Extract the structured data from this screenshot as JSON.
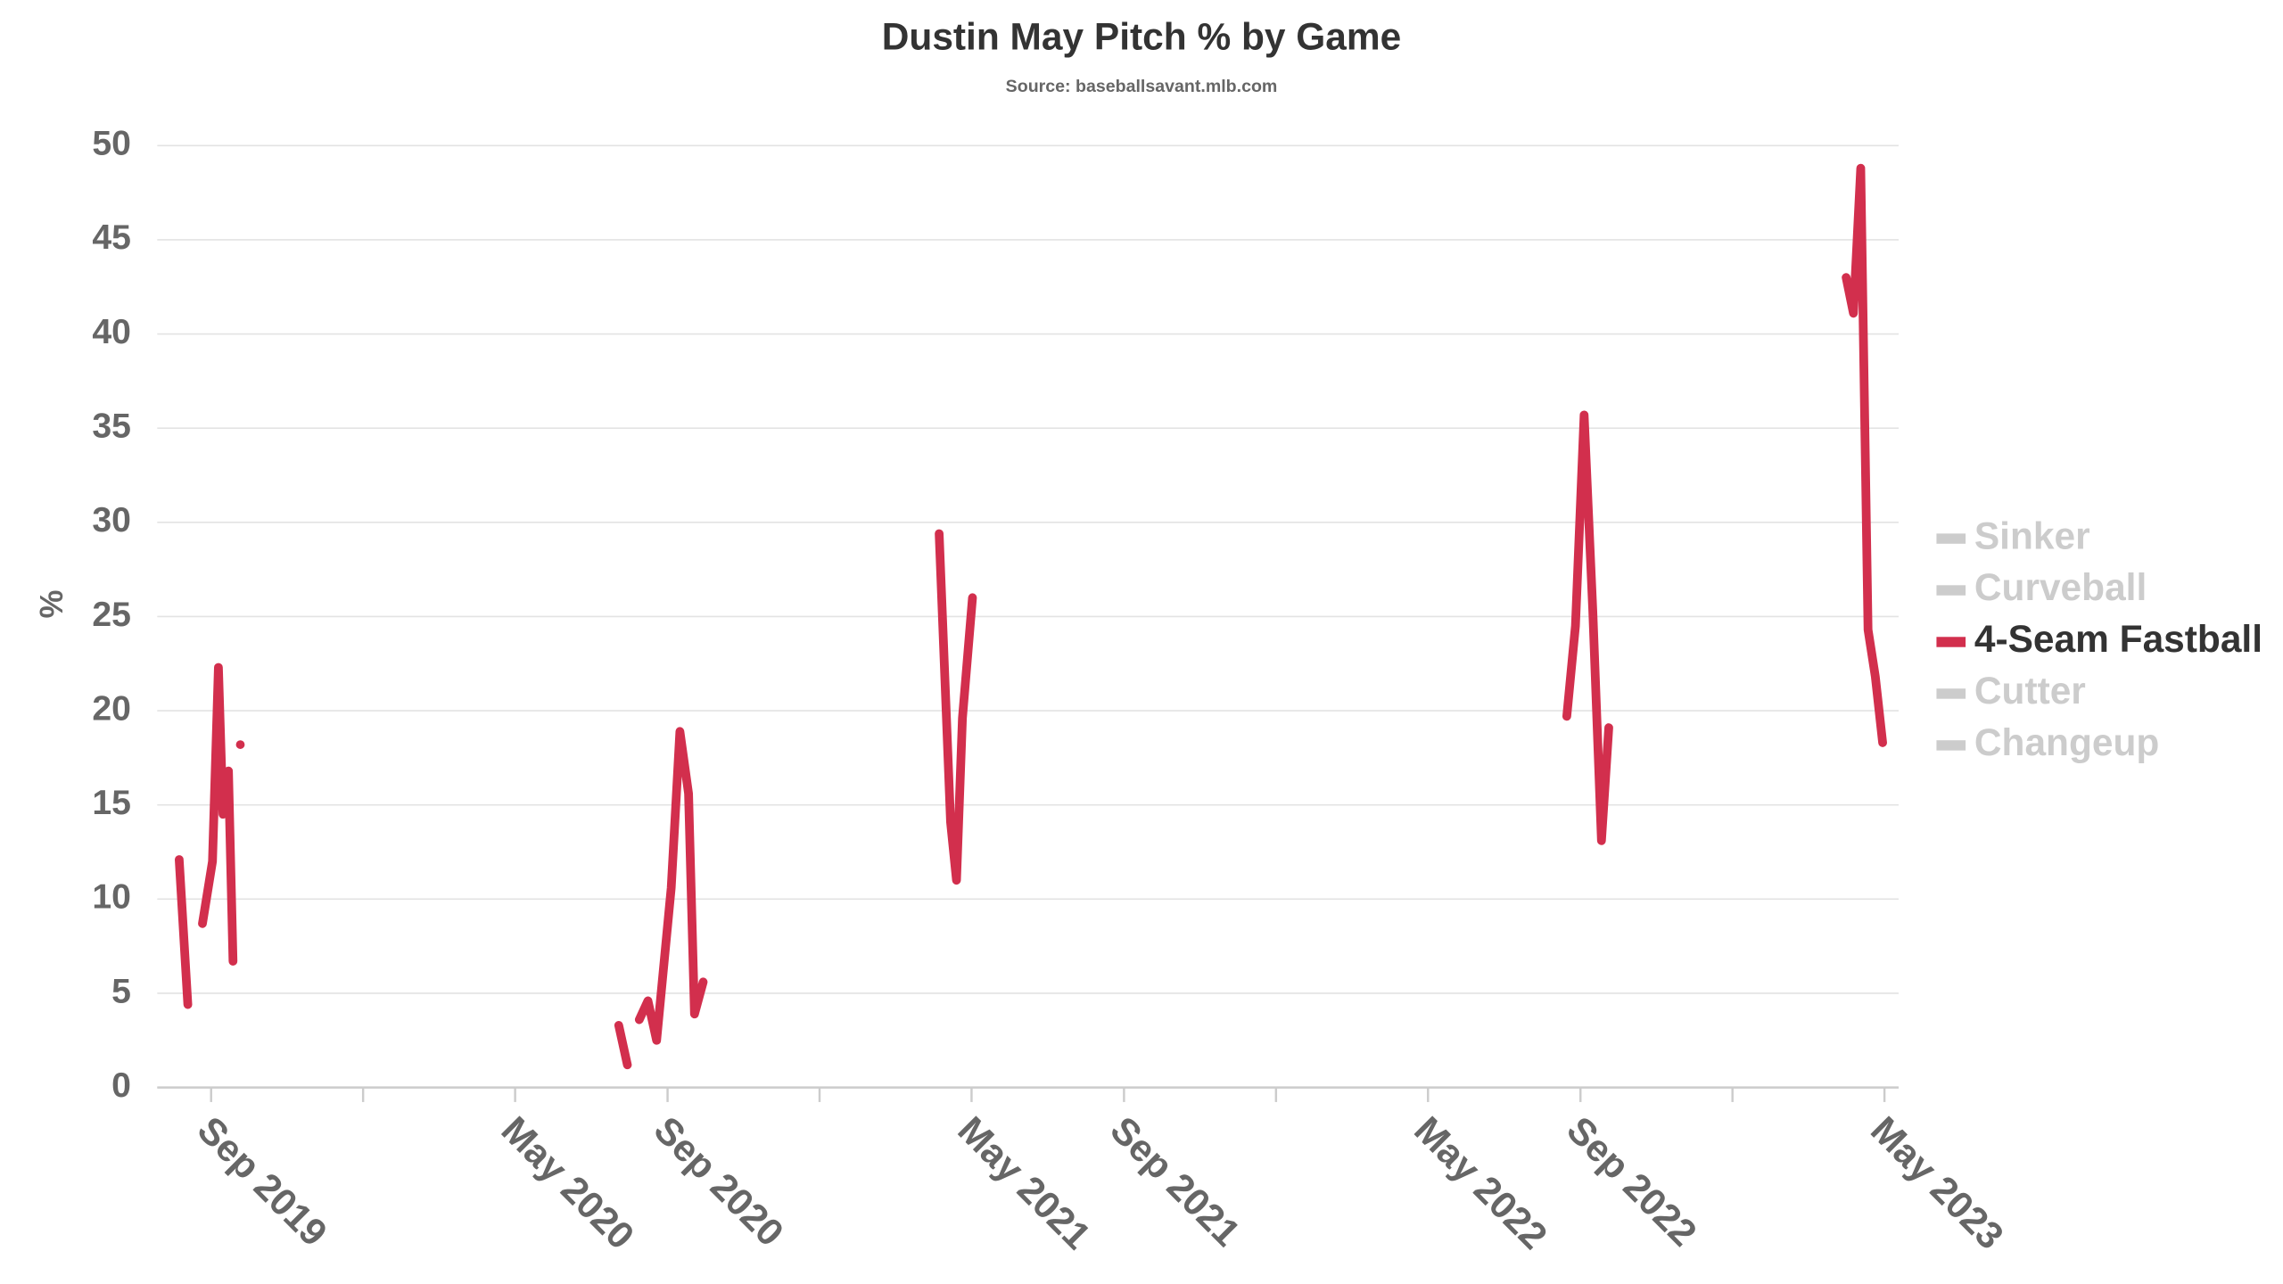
{
  "chart_data": {
    "type": "line",
    "title": "Dustin May Pitch % by Game",
    "subtitle": "Source: baseballsavant.mlb.com",
    "y_label": "%",
    "xlim": [
      2019.549,
      2023.364
    ],
    "xticks": [
      {
        "value": 2019.667,
        "label": "Sep 2019"
      },
      {
        "value": 2020.333,
        "label": "May 2020"
      },
      {
        "value": 2020.667,
        "label": "Sep 2020"
      },
      {
        "value": 2021.333,
        "label": "May 2021"
      },
      {
        "value": 2021.667,
        "label": "Sep 2021"
      },
      {
        "value": 2022.333,
        "label": "May 2022"
      },
      {
        "value": 2022.667,
        "label": "Sep 2022"
      },
      {
        "value": 2023.333,
        "label": "May 2023"
      }
    ],
    "xminorticks": [
      2020,
      2021,
      2022,
      2023
    ],
    "ylim": [
      0,
      50
    ],
    "yticks": [
      0,
      5,
      10,
      15,
      20,
      25,
      30,
      35,
      40,
      45,
      50
    ],
    "grid": true,
    "legend": "right",
    "x": [
      2019.597,
      2019.616,
      null,
      2019.648,
      2019.67,
      2019.683,
      2019.693,
      2019.705,
      2019.715,
      null,
      2019.731,
      null,
      2020.56,
      2020.579,
      null,
      2020.605,
      2020.624,
      2020.643,
      2020.675,
      2020.694,
      2020.713,
      2020.726,
      2020.745,
      null,
      2021.262,
      2021.287,
      2021.3,
      2021.313,
      2021.335,
      null,
      2022.637,
      2022.656,
      2022.675,
      2022.694,
      2022.713,
      2022.729,
      null,
      2023.249,
      2023.265,
      2023.281,
      2023.297,
      2023.313,
      2023.329
    ],
    "series": [
      {
        "name": "Sinker",
        "color": "#cccccc",
        "visible": false
      },
      {
        "name": "Curveball",
        "color": "#cccccc",
        "visible": false
      },
      {
        "name": "4-Seam Fastball",
        "color": "#d22f4d",
        "visible": true,
        "values": [
          12.1,
          4.4,
          null,
          8.7,
          12,
          22.3,
          14.5,
          16.8,
          6.7,
          null,
          18.2,
          null,
          3.3,
          1.2,
          null,
          3.6,
          4.6,
          2.5,
          10.6,
          18.9,
          15.6,
          3.9,
          5.6,
          null,
          29.4,
          14.1,
          11,
          19.6,
          26,
          null,
          19.7,
          24.5,
          35.7,
          25.3,
          13.1,
          19.1,
          null,
          43,
          41.1,
          48.8,
          24.3,
          21.8,
          18.3
        ]
      },
      {
        "name": "Cutter",
        "color": "#cccccc",
        "visible": false
      },
      {
        "name": "Changeup",
        "color": "#cccccc",
        "visible": false
      }
    ]
  }
}
